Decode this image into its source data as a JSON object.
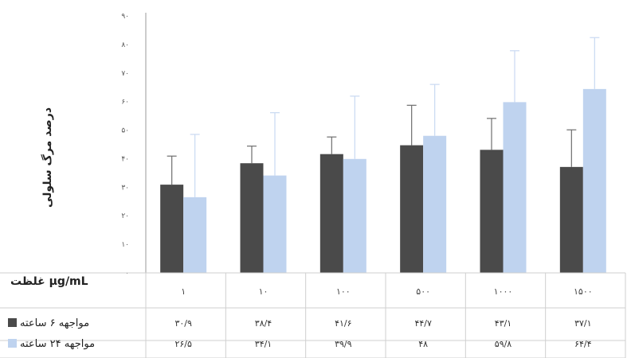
{
  "chart_data": {
    "type": "bar",
    "ylabel": "درصد مرگ سلولی",
    "xlabel": "غلظت μg/mL",
    "ylim": [
      0,
      90
    ],
    "y_ticks": [
      "۰",
      "۱۰",
      "۲۰",
      "۳۰",
      "۴۰",
      "۵۰",
      "۶۰",
      "۷۰",
      "۸۰",
      "۹۰"
    ],
    "categories": [
      "۱",
      "۱۰",
      "۱۰۰",
      "۵۰۰",
      "۱۰۰۰",
      "۱۵۰۰"
    ],
    "grid": false,
    "legend": "table-left",
    "series": [
      {
        "name": "مواجهه ۶ ساعته",
        "color": "#4a4a4a",
        "values": [
          30.9,
          38.4,
          41.6,
          44.7,
          43.1,
          37.1
        ],
        "labels": [
          "۳۰/۹",
          "۳۸/۴",
          "۴۱/۶",
          "۴۴/۷",
          "۴۳/۱",
          "۳۷/۱"
        ],
        "error": [
          10,
          6,
          6,
          14,
          11,
          13
        ]
      },
      {
        "name": "مواجهه ۲۴ ساعته",
        "color": "#bfd3ef",
        "values": [
          26.5,
          34.1,
          39.9,
          48,
          59.8,
          64.4
        ],
        "labels": [
          "۲۶/۵",
          "۳۴/۱",
          "۳۹/۹",
          "۴۸",
          "۵۹/۸",
          "۶۴/۴"
        ],
        "error": [
          22,
          22,
          22,
          18,
          18,
          18
        ]
      }
    ]
  }
}
